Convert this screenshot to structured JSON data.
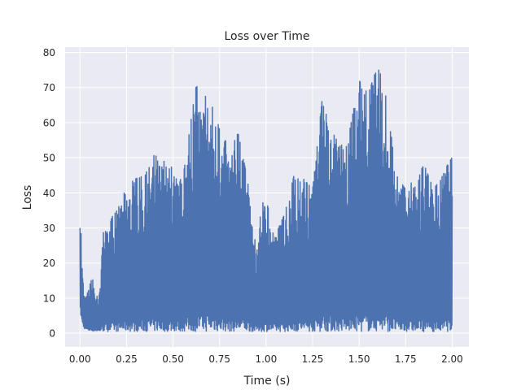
{
  "chart_data": {
    "type": "line",
    "title": "Loss over Time",
    "xlabel": "Time (s)",
    "ylabel": "Loss",
    "xlim": [
      -0.08,
      2.09
    ],
    "ylim": [
      -3.9,
      81.5
    ],
    "xticks": [
      0.0,
      0.25,
      0.5,
      0.75,
      1.0,
      1.25,
      1.5,
      1.75,
      2.0
    ],
    "xtick_labels": [
      "0.00",
      "0.25",
      "0.50",
      "0.75",
      "1.00",
      "1.25",
      "1.50",
      "1.75",
      "2.00"
    ],
    "yticks": [
      0,
      10,
      20,
      30,
      40,
      50,
      60,
      70,
      80
    ],
    "ytick_labels": [
      "0",
      "10",
      "20",
      "30",
      "40",
      "50",
      "60",
      "70",
      "80"
    ],
    "grid": true,
    "series": [
      {
        "color": "#4c72b0",
        "style": "dense-oscillation",
        "upper_envelope": {
          "x": [
            0.0,
            0.005,
            0.01,
            0.02,
            0.03,
            0.05,
            0.07,
            0.1,
            0.13,
            0.15,
            0.17,
            0.2,
            0.25,
            0.3,
            0.35,
            0.4,
            0.45,
            0.5,
            0.55,
            0.6,
            0.625,
            0.65,
            0.7,
            0.725,
            0.75,
            0.8,
            0.85,
            0.9,
            0.93,
            0.95,
            0.98,
            1.0,
            1.05,
            1.1,
            1.15,
            1.2,
            1.25,
            1.3,
            1.35,
            1.4,
            1.45,
            1.5,
            1.55,
            1.6,
            1.65,
            1.7,
            1.75,
            1.8,
            1.85,
            1.9,
            1.95,
            2.0
          ],
          "y": [
            30,
            34,
            22,
            13,
            10,
            14,
            16,
            9,
            32,
            28,
            33,
            35,
            42,
            44,
            45,
            52,
            49,
            47,
            43,
            62,
            71,
            66,
            69,
            63,
            58,
            53,
            57,
            44,
            28,
            27,
            37,
            38,
            28,
            34,
            45,
            44,
            41,
            66,
            58,
            53,
            58,
            72,
            68,
            77,
            66,
            45,
            41,
            44,
            48,
            41,
            45,
            51
          ]
        },
        "lower_envelope": {
          "x": [
            0.0,
            0.01,
            0.02,
            0.03,
            0.05,
            0.1,
            0.2,
            0.5,
            1.0,
            1.5,
            2.0
          ],
          "y": [
            6,
            3,
            1.5,
            1,
            0.6,
            0.5,
            0.5,
            0.5,
            0.5,
            0.5,
            0.5
          ]
        }
      }
    ]
  }
}
